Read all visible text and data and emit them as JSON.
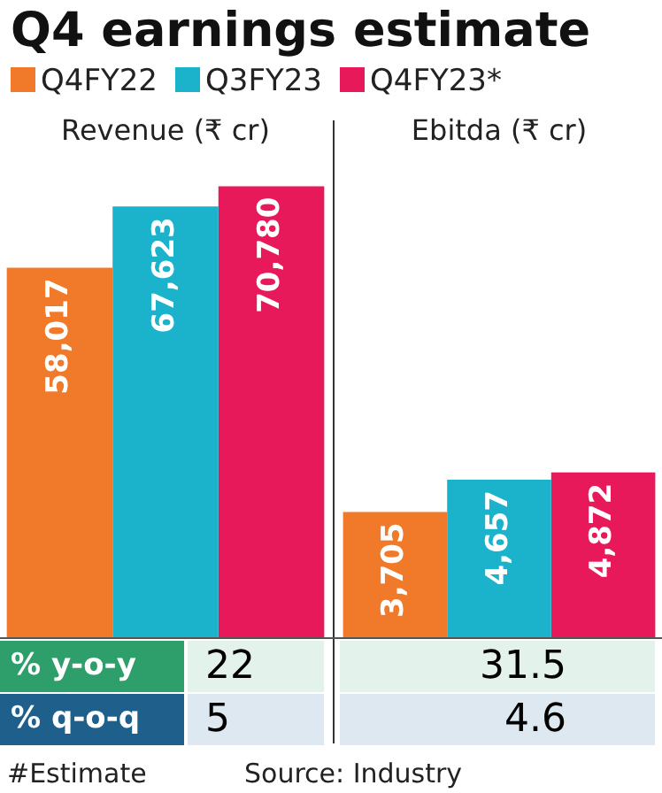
{
  "chart_data": [
    {
      "type": "bar",
      "title": "Q4 earnings estimate",
      "subtitle": "Revenue (₹ cr)",
      "categories": [
        null
      ],
      "legend": "top",
      "series": [
        {
          "name": "Q4FY22",
          "color": "#f07a2a",
          "values": [
            58017
          ],
          "value_labels": [
            "58,017"
          ]
        },
        {
          "name": "Q3FY23",
          "color": "#1bb3cc",
          "values": [
            67623
          ],
          "value_labels": [
            "67,623"
          ]
        },
        {
          "name": "Q4FY23*",
          "color": "#e8195a",
          "values": [
            70780
          ],
          "value_labels": [
            "70,780"
          ]
        }
      ],
      "annotations": [
        "% y-o-y",
        "22",
        "% q-o-q",
        "5",
        "#Estimate"
      ]
    },
    {
      "type": "bar",
      "title": "Ebitda (₹ cr)",
      "categories": [
        null
      ],
      "series": [
        {
          "color": "#f07a2a",
          "values": [
            3705
          ],
          "value_labels": [
            "3,705"
          ]
        },
        {
          "color": "#1bb3cc",
          "values": [
            4657
          ],
          "value_labels": [
            "4,657"
          ]
        },
        {
          "color": "#e8195a",
          "values": [
            4872
          ],
          "value_labels": [
            "4,872"
          ]
        }
      ],
      "annotations": [
        "31.5",
        "4.6",
        "Source: Industry"
      ]
    }
  ]
}
